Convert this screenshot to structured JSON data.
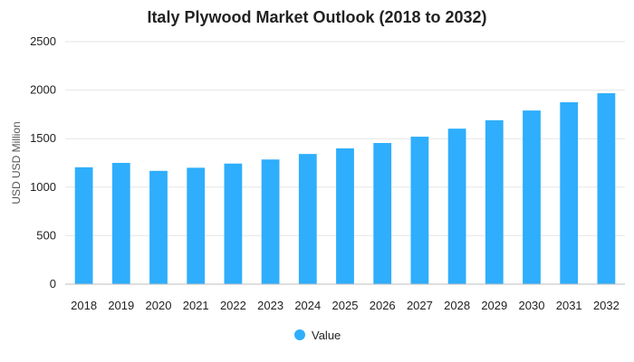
{
  "chart_data": {
    "type": "bar",
    "title": "Italy Plywood Market Outlook (2018 to 2032)",
    "xlabel": "",
    "ylabel": "USD USD Million",
    "ylim": [
      0,
      2500
    ],
    "yticks": [
      0,
      500,
      1000,
      1500,
      2000,
      2500
    ],
    "grid": true,
    "legend_position": "bottom",
    "categories": [
      "2018",
      "2019",
      "2020",
      "2021",
      "2022",
      "2023",
      "2024",
      "2025",
      "2026",
      "2027",
      "2028",
      "2029",
      "2030",
      "2031",
      "2032"
    ],
    "series": [
      {
        "name": "Value",
        "color": "#2eaefc",
        "values": [
          1205,
          1250,
          1168,
          1200,
          1243,
          1285,
          1342,
          1400,
          1455,
          1520,
          1603,
          1690,
          1790,
          1875,
          1968
        ]
      }
    ]
  }
}
